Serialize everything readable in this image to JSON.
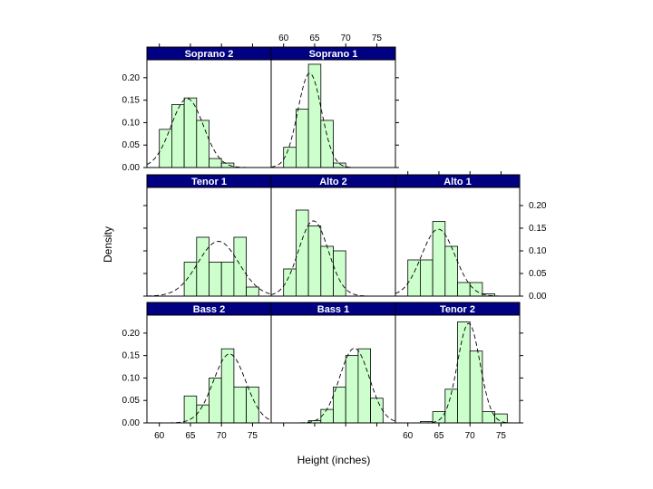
{
  "chart_data": {
    "type": "lattice-histogram",
    "xlabel": "Height (inches)",
    "ylabel": "Density",
    "xlim": [
      58,
      78
    ],
    "ylim": [
      0,
      0.24
    ],
    "x_ticks": [
      60,
      65,
      70,
      75
    ],
    "y_ticks": [
      0.0,
      0.05,
      0.1,
      0.15,
      0.2
    ],
    "y_tick_labels": [
      "0.00",
      "0.05",
      "0.10",
      "0.15",
      "0.20"
    ],
    "colors": {
      "strip": "#000080",
      "bar_fill": "#ccffcc",
      "bar_edge": "#000000",
      "curve": "#000000"
    },
    "panels": [
      {
        "name": "Soprano 2",
        "row": 0,
        "col": 0,
        "bins": [
          [
            60,
            62,
            0.085
          ],
          [
            62,
            64,
            0.14
          ],
          [
            64,
            66,
            0.155
          ],
          [
            66,
            68,
            0.105
          ],
          [
            68,
            70,
            0.02
          ],
          [
            70,
            72,
            0.01
          ]
        ],
        "normal_mean": 64.5,
        "normal_sd": 2.6
      },
      {
        "name": "Soprano 1",
        "row": 0,
        "col": 1,
        "bins": [
          [
            60,
            62,
            0.045
          ],
          [
            62,
            64,
            0.13
          ],
          [
            64,
            66,
            0.23
          ],
          [
            66,
            68,
            0.105
          ],
          [
            68,
            70,
            0.01
          ]
        ],
        "normal_mean": 64.2,
        "normal_sd": 1.9
      },
      {
        "name": "Tenor 1",
        "row": 1,
        "col": 0,
        "bins": [
          [
            64,
            66,
            0.075
          ],
          [
            66,
            68,
            0.13
          ],
          [
            68,
            70,
            0.075
          ],
          [
            70,
            72,
            0.075
          ],
          [
            72,
            74,
            0.13
          ],
          [
            74,
            76,
            0.02
          ]
        ],
        "normal_mean": 69.5,
        "normal_sd": 3.3
      },
      {
        "name": "Alto 2",
        "row": 1,
        "col": 1,
        "bins": [
          [
            60,
            62,
            0.06
          ],
          [
            62,
            64,
            0.19
          ],
          [
            64,
            66,
            0.155
          ],
          [
            66,
            68,
            0.11
          ],
          [
            68,
            70,
            0.1
          ]
        ],
        "normal_mean": 64.8,
        "normal_sd": 2.4
      },
      {
        "name": "Alto 1",
        "row": 1,
        "col": 2,
        "bins": [
          [
            60,
            62,
            0.08
          ],
          [
            62,
            64,
            0.08
          ],
          [
            64,
            66,
            0.165
          ],
          [
            66,
            68,
            0.11
          ],
          [
            68,
            70,
            0.03
          ],
          [
            70,
            72,
            0.03
          ],
          [
            72,
            74,
            0.005
          ]
        ],
        "normal_mean": 64.9,
        "normal_sd": 2.7
      },
      {
        "name": "Bass 2",
        "row": 2,
        "col": 0,
        "bins": [
          [
            64,
            66,
            0.06
          ],
          [
            66,
            68,
            0.04
          ],
          [
            68,
            70,
            0.1
          ],
          [
            70,
            72,
            0.165
          ],
          [
            72,
            74,
            0.08
          ],
          [
            74,
            76,
            0.08
          ]
        ],
        "normal_mean": 71.3,
        "normal_sd": 2.6
      },
      {
        "name": "Bass 1",
        "row": 2,
        "col": 1,
        "bins": [
          [
            64,
            66,
            0.005
          ],
          [
            66,
            68,
            0.03
          ],
          [
            68,
            70,
            0.08
          ],
          [
            70,
            72,
            0.15
          ],
          [
            72,
            74,
            0.165
          ],
          [
            74,
            76,
            0.055
          ]
        ],
        "normal_mean": 71.4,
        "normal_sd": 2.4
      },
      {
        "name": "Tenor 2",
        "row": 2,
        "col": 2,
        "bins": [
          [
            62,
            64,
            0.003
          ],
          [
            64,
            66,
            0.025
          ],
          [
            66,
            68,
            0.075
          ],
          [
            68,
            70,
            0.225
          ],
          [
            70,
            72,
            0.16
          ],
          [
            72,
            74,
            0.025
          ],
          [
            74,
            76,
            0.02
          ]
        ],
        "normal_mean": 69.8,
        "normal_sd": 1.8
      }
    ]
  }
}
